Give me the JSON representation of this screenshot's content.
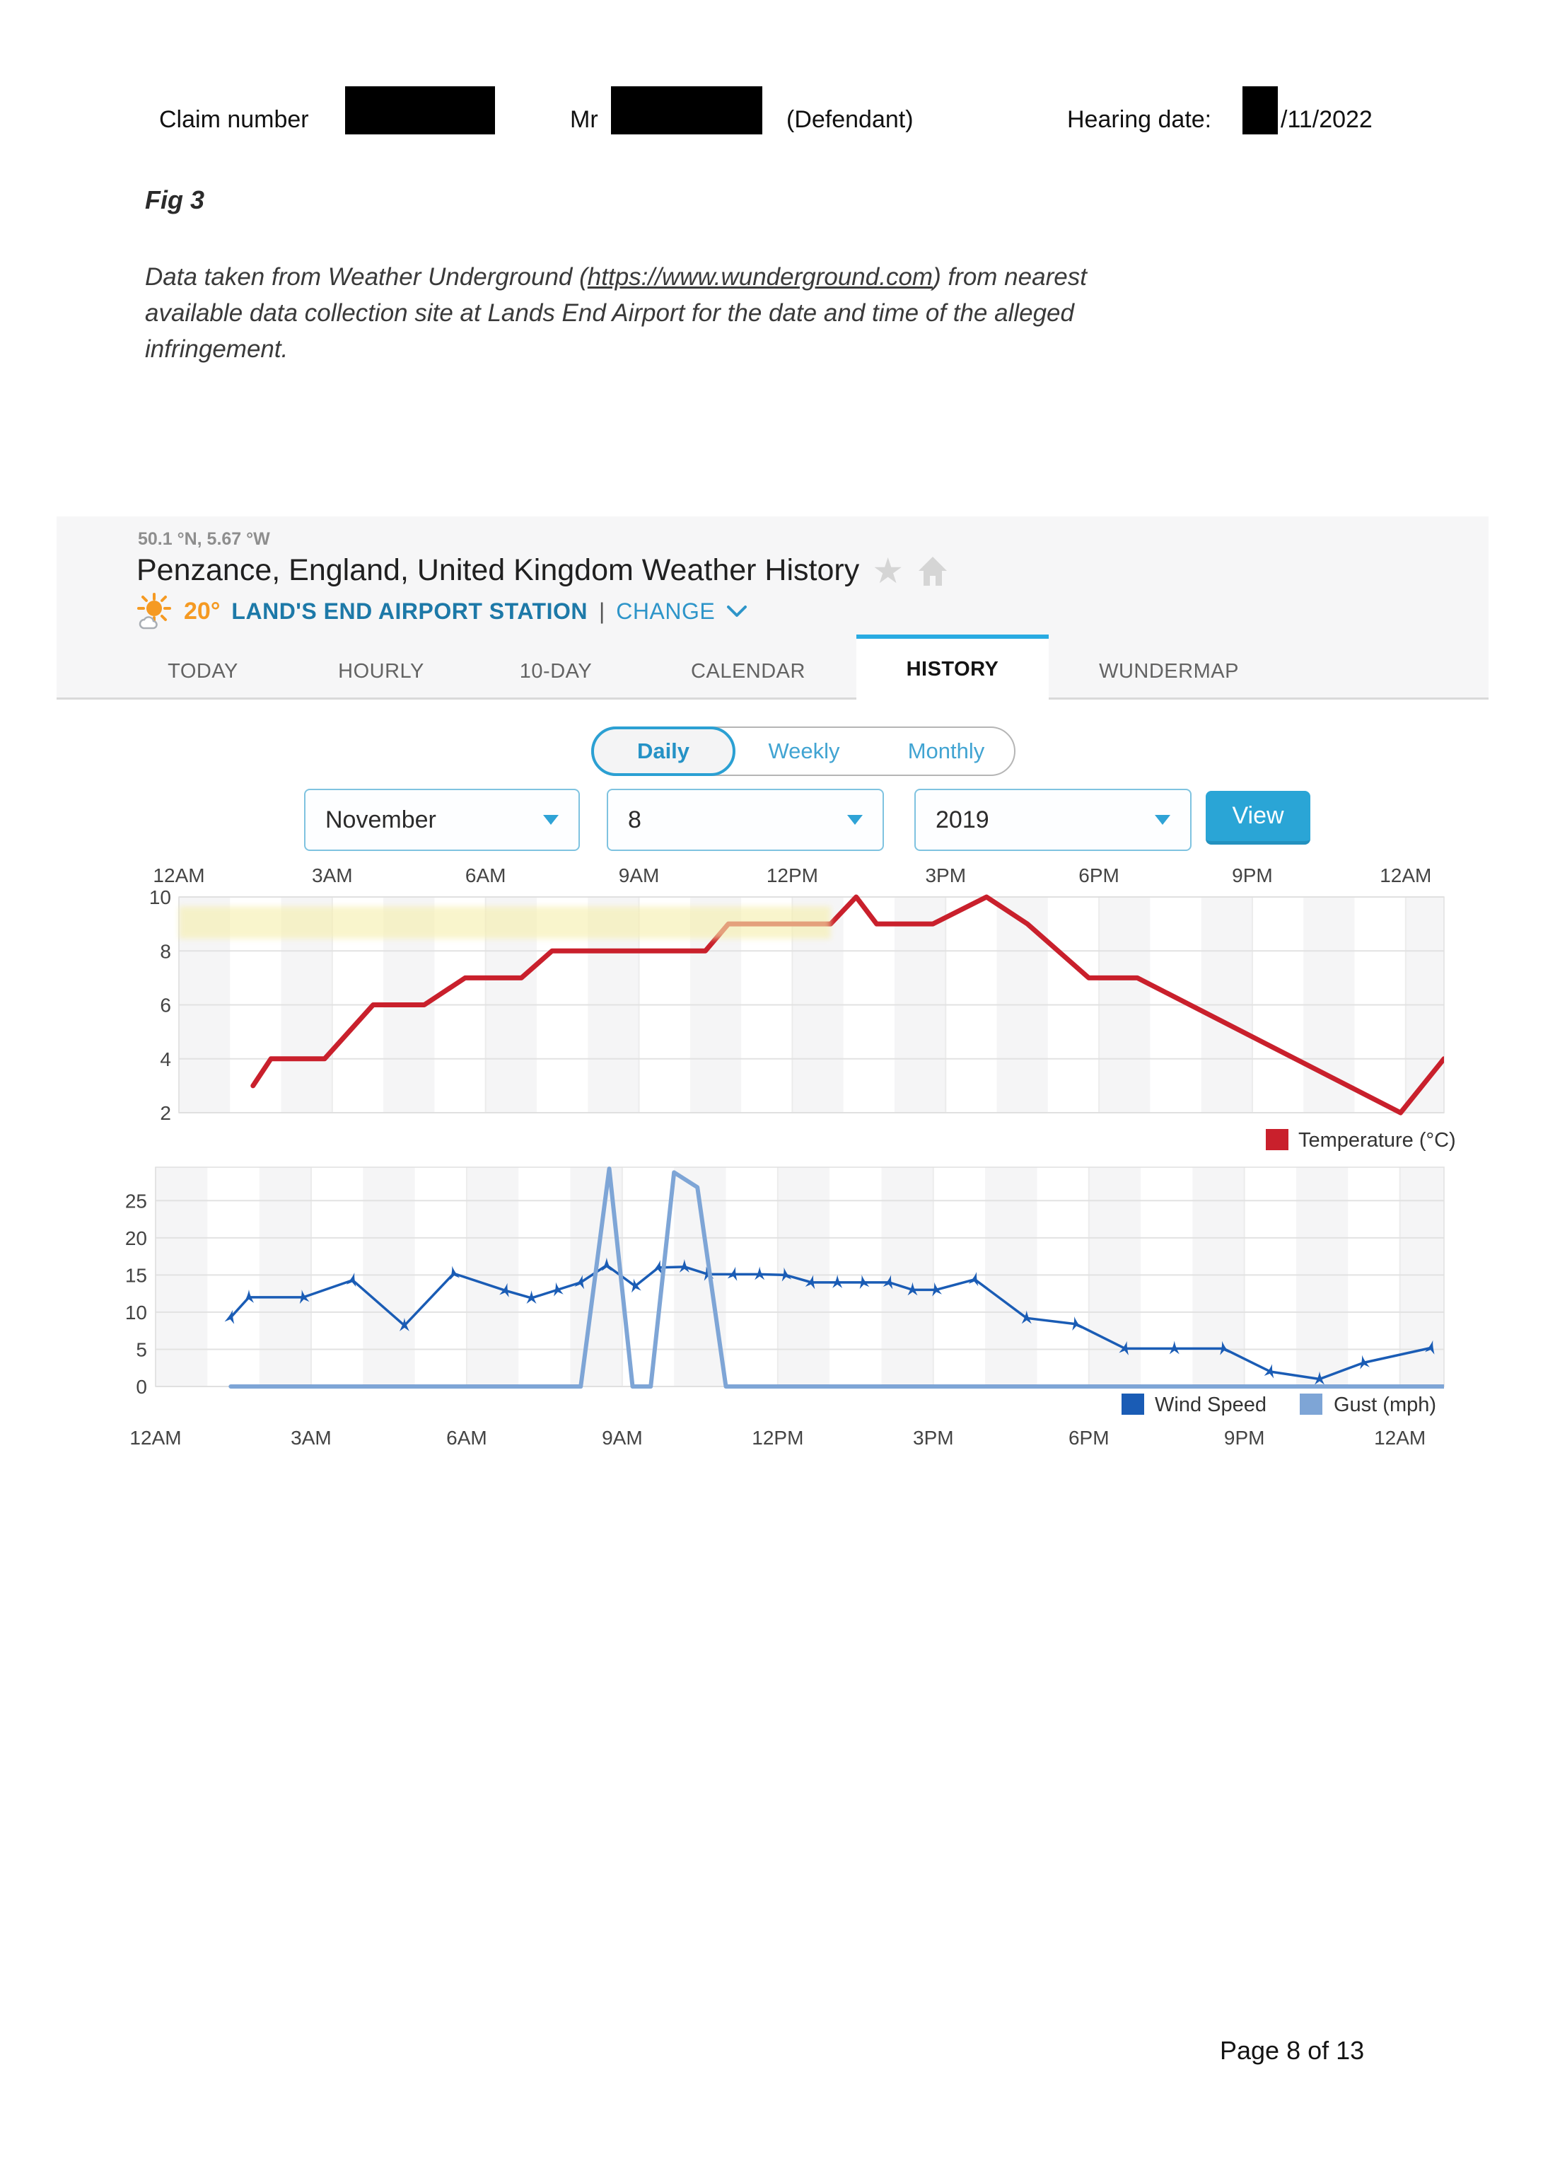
{
  "document": {
    "header": {
      "claim_label": "Claim number",
      "mr_label": "Mr",
      "defendant_label": "(Defendant)",
      "hearing_label": "Hearing date:",
      "hearing_date_suffix": "/11/2022"
    },
    "figure_label": "Fig 3",
    "caption": {
      "line1_before_link": "Data taken from Weather Underground (",
      "link": "https://www.wunderground.com",
      "line1_after_link": ") from nearest",
      "line2": "available data collection site at Lands End Airport for the date and time of the alleged",
      "line3": "infringement."
    },
    "page_footer": "Page 8 of 13"
  },
  "widget": {
    "coordinates": "50.1 °N, 5.67 °W",
    "title": "Penzance, England, United Kingdom Weather History",
    "current_temp": "20°",
    "station_name": "LAND'S END AIRPORT STATION",
    "station_separator": "|",
    "change_label": "CHANGE",
    "tabs": [
      {
        "label": "TODAY",
        "active": false
      },
      {
        "label": "HOURLY",
        "active": false
      },
      {
        "label": "10-DAY",
        "active": false
      },
      {
        "label": "CALENDAR",
        "active": false
      },
      {
        "label": "HISTORY",
        "active": true
      },
      {
        "label": "WUNDERMAP",
        "active": false
      }
    ],
    "period_toggle": {
      "options": [
        "Daily",
        "Weekly",
        "Monthly"
      ],
      "selected": "Daily"
    },
    "date_selects": {
      "month": "November",
      "day": "8",
      "year": "2019"
    },
    "view_button": "View",
    "colors": {
      "accent_blue": "#29abe2",
      "station_blue": "#1d79a8",
      "change_blue": "#2e95c9",
      "orange": "#f59a23",
      "temp_red": "#c9202c",
      "wind_blue": "#1a5cb5",
      "gust_blue": "#7ea5d6",
      "highlight_yellow": "#f6efad"
    }
  },
  "chart_data": [
    {
      "type": "line",
      "title": "Temperature history for Nov 8 2019",
      "xticks_hours": [
        0,
        3,
        6,
        9,
        12,
        15,
        18,
        21,
        24
      ],
      "xticklabels": [
        "12AM",
        "3AM",
        "6AM",
        "9AM",
        "12PM",
        "3PM",
        "6PM",
        "9PM",
        "12AM"
      ],
      "yticks": [
        2,
        4,
        6,
        8,
        10
      ],
      "ylim": [
        2,
        10
      ],
      "xlim_hours": [
        0,
        24.75
      ],
      "x_axis_position": "top",
      "grid": true,
      "series": [
        {
          "name": "Temperature (°C)",
          "color": "#c9202c",
          "x": [
            1.45,
            1.8,
            2.85,
            3.8,
            4.8,
            5.6,
            6.7,
            7.3,
            10.3,
            10.75,
            12.75,
            13.25,
            13.65,
            14.75,
            15.8,
            16.6,
            17.8,
            18.75,
            23.9,
            24.75
          ],
          "values": [
            3,
            4,
            4,
            6,
            6,
            7,
            7,
            8,
            8,
            9,
            9,
            10,
            9,
            9,
            10,
            9,
            7,
            7,
            2,
            4
          ]
        }
      ],
      "legend": [
        {
          "label": "Temperature (°C)",
          "color": "#c9202c"
        }
      ],
      "legend_position": "bottom-right",
      "annotation_highlight": {
        "x1_hour": 0,
        "x2_hour": 12.75,
        "y1": 8.45,
        "y2": 9.65,
        "color": "#f6efad"
      }
    },
    {
      "type": "line",
      "title": "Wind speed and gust history for Nov 8 2019",
      "xticks_hours": [
        0,
        3,
        6,
        9,
        12,
        15,
        18,
        21,
        24
      ],
      "xticklabels": [
        "12AM",
        "3AM",
        "6AM",
        "9AM",
        "12PM",
        "3PM",
        "6PM",
        "9PM",
        "12AM"
      ],
      "yticks": [
        0,
        5,
        10,
        15,
        20,
        25
      ],
      "ylim": [
        0,
        29.5
      ],
      "xlim_hours": [
        0,
        24.85
      ],
      "x_axis_position": "bottom",
      "grid": true,
      "series": [
        {
          "name": "Wind Speed",
          "color": "#1a5cb5",
          "marker": "wind-arrow",
          "x": [
            1.45,
            1.8,
            2.85,
            3.8,
            4.8,
            5.75,
            6.75,
            7.25,
            7.75,
            8.2,
            8.7,
            9.25,
            9.7,
            10.2,
            10.65,
            11.15,
            11.65,
            12.15,
            12.65,
            13.15,
            13.65,
            14.15,
            14.6,
            15.05,
            15.8,
            16.8,
            17.75,
            18.7,
            19.65,
            20.6,
            21.5,
            22.45,
            23.3,
            24.6
          ],
          "values": [
            9.3,
            12,
            12,
            14.3,
            8.2,
            15.2,
            12.9,
            11.9,
            13,
            14,
            16.3,
            13.5,
            16,
            16.1,
            15.1,
            15.1,
            15.1,
            15,
            14,
            14,
            14,
            14,
            13,
            13,
            14.4,
            9.2,
            8.4,
            5.1,
            5.1,
            5.1,
            2,
            1,
            3.2,
            5.2
          ]
        },
        {
          "name": "Gust (mph)",
          "color": "#7ea5d6",
          "x": [
            1.45,
            8.2,
            8.75,
            9.2,
            9.55,
            10.0,
            10.45,
            11.0,
            24.85
          ],
          "values": [
            0,
            0,
            29.3,
            0,
            0,
            28.8,
            26.8,
            0,
            0
          ]
        }
      ],
      "legend": [
        {
          "label": "Wind Speed",
          "color": "#1a5cb5"
        },
        {
          "label": "Gust (mph)",
          "color": "#7ea5d6"
        }
      ],
      "legend_position": "bottom-right"
    }
  ]
}
